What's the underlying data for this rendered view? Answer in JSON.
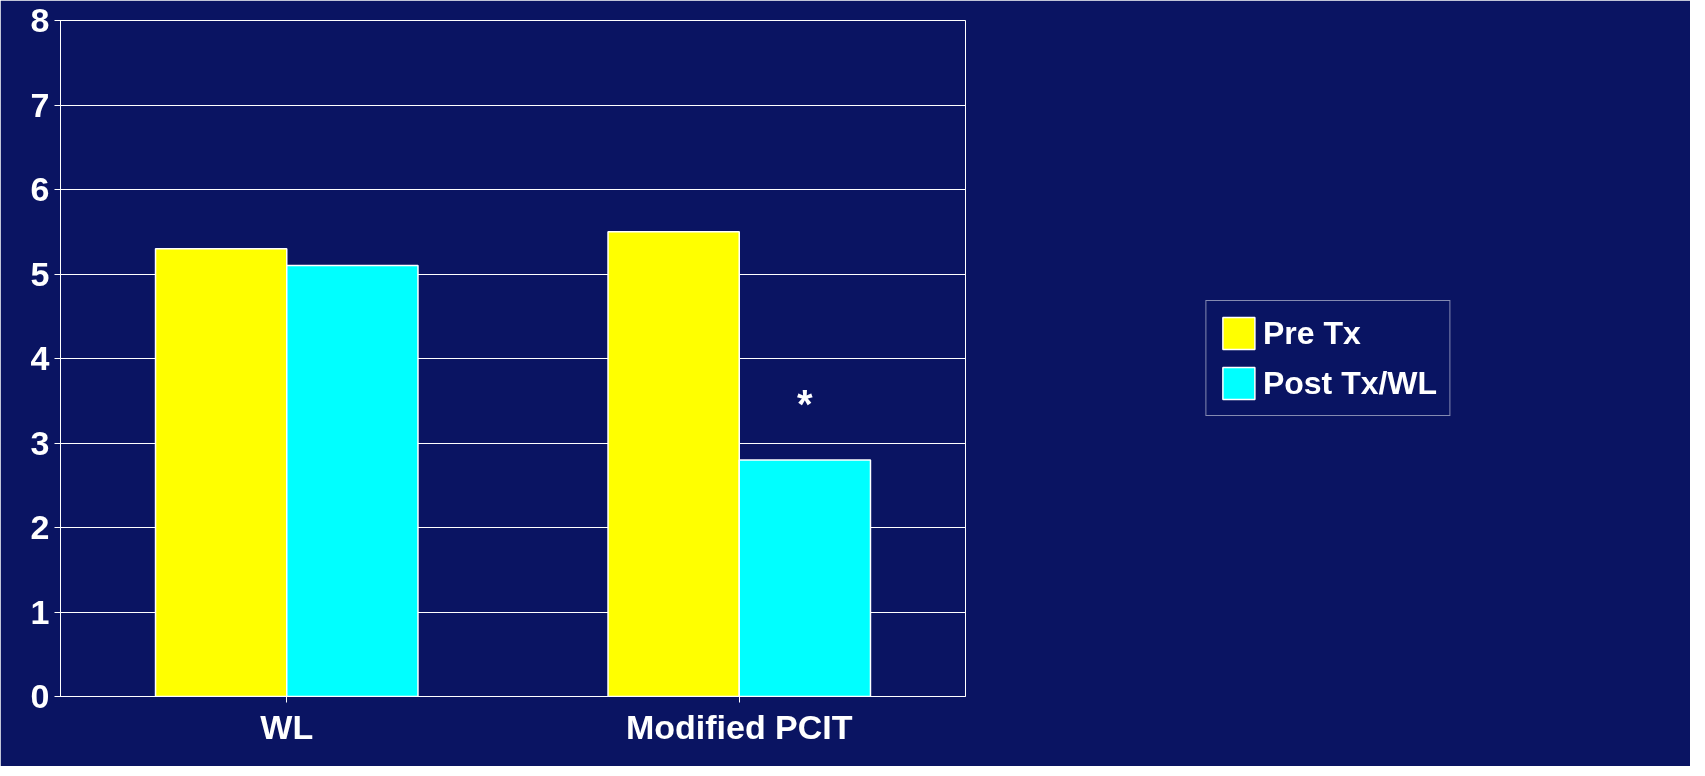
{
  "chart_data": {
    "type": "bar",
    "categories": [
      "WL",
      "Modified PCIT"
    ],
    "series": [
      {
        "name": "Pre Tx",
        "color": "#ffff00",
        "values": [
          5.3,
          5.5
        ]
      },
      {
        "name": "Post Tx/WL",
        "color": "#00ffff",
        "values": [
          5.1,
          2.8
        ]
      }
    ],
    "ylim": [
      0,
      8
    ],
    "yticks": [
      0,
      1,
      2,
      3,
      4,
      5,
      6,
      7,
      8
    ],
    "grid": "y",
    "legend": "right",
    "annotations": [
      {
        "text": "*",
        "x": "Modified PCIT",
        "y": 3.2
      }
    ]
  }
}
